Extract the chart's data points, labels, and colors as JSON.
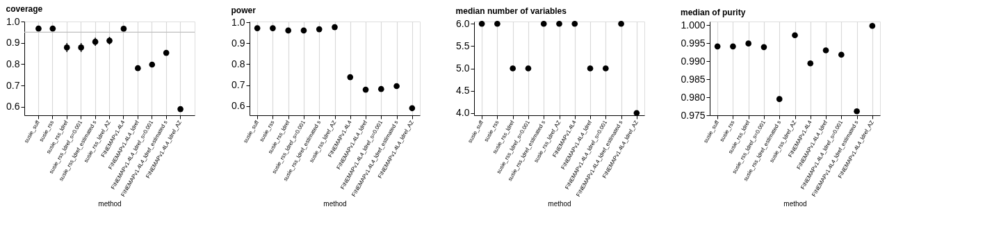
{
  "chart_data": [
    {
      "type": "scatter",
      "title": "coverage",
      "xlabel": "method",
      "marker": "circle",
      "grid": "x",
      "categories": [
        "susie_suff",
        "susie_rss",
        "susie_rss_ldref",
        "susie_rss_ldref_s=0.001",
        "susie_rss_ldref_estimated s",
        "susie_rss_ldref_AZ",
        "FINEMAPv1.4L4",
        "FINEMAPv1.4L4_ldref",
        "FINEMAPv1.4L4_ldref_s=0.001",
        "FINEMAPv1.4L4_ldref_estimated s",
        "FINEMAPv1.4L4_ldref_AZ"
      ],
      "series": [
        {
          "color": "#000000",
          "values": [
            0.967,
            0.967,
            0.878,
            0.878,
            0.905,
            0.91,
            0.966,
            0.781,
            0.798,
            0.853,
            0.589
          ],
          "errors": [
            null,
            null,
            0.021,
            0.021,
            0.019,
            0.018,
            null,
            null,
            null,
            null,
            null
          ]
        }
      ],
      "ylim": [
        0.56,
        1.0
      ],
      "yticks": [
        {
          "value": 0.6,
          "label": "0.6"
        },
        {
          "value": 0.7,
          "label": "0.7"
        },
        {
          "value": 0.8,
          "label": "0.8"
        },
        {
          "value": 0.9,
          "label": "0.9"
        },
        {
          "value": 1,
          "label": "1.0"
        }
      ],
      "ref_lines": [
        {
          "axis": "y",
          "value": 0.95,
          "color": "#bebebe"
        }
      ]
    },
    {
      "type": "scatter",
      "title": "power",
      "xlabel": "method",
      "marker": "circle",
      "grid": "x",
      "categories": [
        "susie_suff",
        "susie_rss",
        "susie_rss_ldref",
        "susie_rss_ldref_s=0.001",
        "susie_rss_ldref_estimated s",
        "susie_rss_ldref_AZ",
        "FINEMAPv1.4L4",
        "FINEMAPv1.4L4_ldref",
        "FINEMAPv1.4L4_ldref_s=0.001",
        "FINEMAPv1.4L4_ldref_estimated s",
        "FINEMAPv1.4L4_ldref_AZ"
      ],
      "series": [
        {
          "color": "#000000",
          "values": [
            0.973,
            0.973,
            0.962,
            0.962,
            0.968,
            0.978,
            0.738,
            0.678,
            0.681,
            0.695,
            0.589
          ]
        }
      ],
      "ylim": [
        0.555,
        1.005
      ],
      "yticks": [
        {
          "value": 0.6,
          "label": "0.6"
        },
        {
          "value": 0.7,
          "label": "0.7"
        },
        {
          "value": 0.8,
          "label": "0.8"
        },
        {
          "value": 0.9,
          "label": "0.9"
        },
        {
          "value": 1,
          "label": "1.0"
        }
      ]
    },
    {
      "type": "scatter",
      "title": "median number of variables",
      "xlabel": "method",
      "marker": "circle",
      "grid": "x",
      "categories": [
        "susie_suff",
        "susie_rss",
        "susie_rss_ldref",
        "susie_rss_ldref_s=0.001",
        "susie_rss_ldref_estimated s",
        "susie_rss_ldref_AZ",
        "FINEMAPv1.4L4",
        "FINEMAPv1.4L4_ldref",
        "FINEMAPv1.4L4_ldref_s=0.001",
        "FINEMAPv1.4L4_ldref_estimated s",
        "FINEMAPv1.4L4_ldref_AZ"
      ],
      "series": [
        {
          "color": "#000000",
          "values": [
            6,
            6,
            5,
            5,
            6,
            6,
            6,
            5,
            5,
            6,
            4
          ]
        }
      ],
      "ylim": [
        3.95,
        6.05
      ],
      "yticks": [
        {
          "value": 4,
          "label": "4.0"
        },
        4.5,
        {
          "value": 5,
          "label": "5.0"
        },
        5.5,
        {
          "value": 6,
          "label": "6.0"
        }
      ]
    },
    {
      "type": "scatter",
      "title": "median of purity",
      "xlabel": "method",
      "marker": "circle",
      "grid": "x",
      "categories": [
        "susie_suff",
        "susie_rss",
        "susie_rss_ldref",
        "susie_rss_ldref_s=0.001",
        "susie_rss_ldref_estimated s",
        "susie_rss_ldref_AZ",
        "FINEMAPv1.4L4",
        "FINEMAPv1.4L4_ldref",
        "FINEMAPv1.4L4_ldref_s=0.001",
        "FINEMAPv1.4L4_ldref_estimated s",
        "FINEMAPv1.4L4_ldref_AZ"
      ],
      "series": [
        {
          "color": "#000000",
          "values": [
            0.9941,
            0.9941,
            0.9949,
            0.9939,
            0.9795,
            0.9972,
            0.9894,
            0.993,
            0.9918,
            0.9761,
            0.9998
          ]
        }
      ],
      "ylim": [
        0.975,
        1.001
      ],
      "yticks": [
        0.975,
        {
          "value": 0.98,
          "label": "0.980"
        },
        0.985,
        {
          "value": 0.99,
          "label": "0.990"
        },
        0.995,
        {
          "value": 1,
          "label": "1.000"
        }
      ]
    }
  ]
}
